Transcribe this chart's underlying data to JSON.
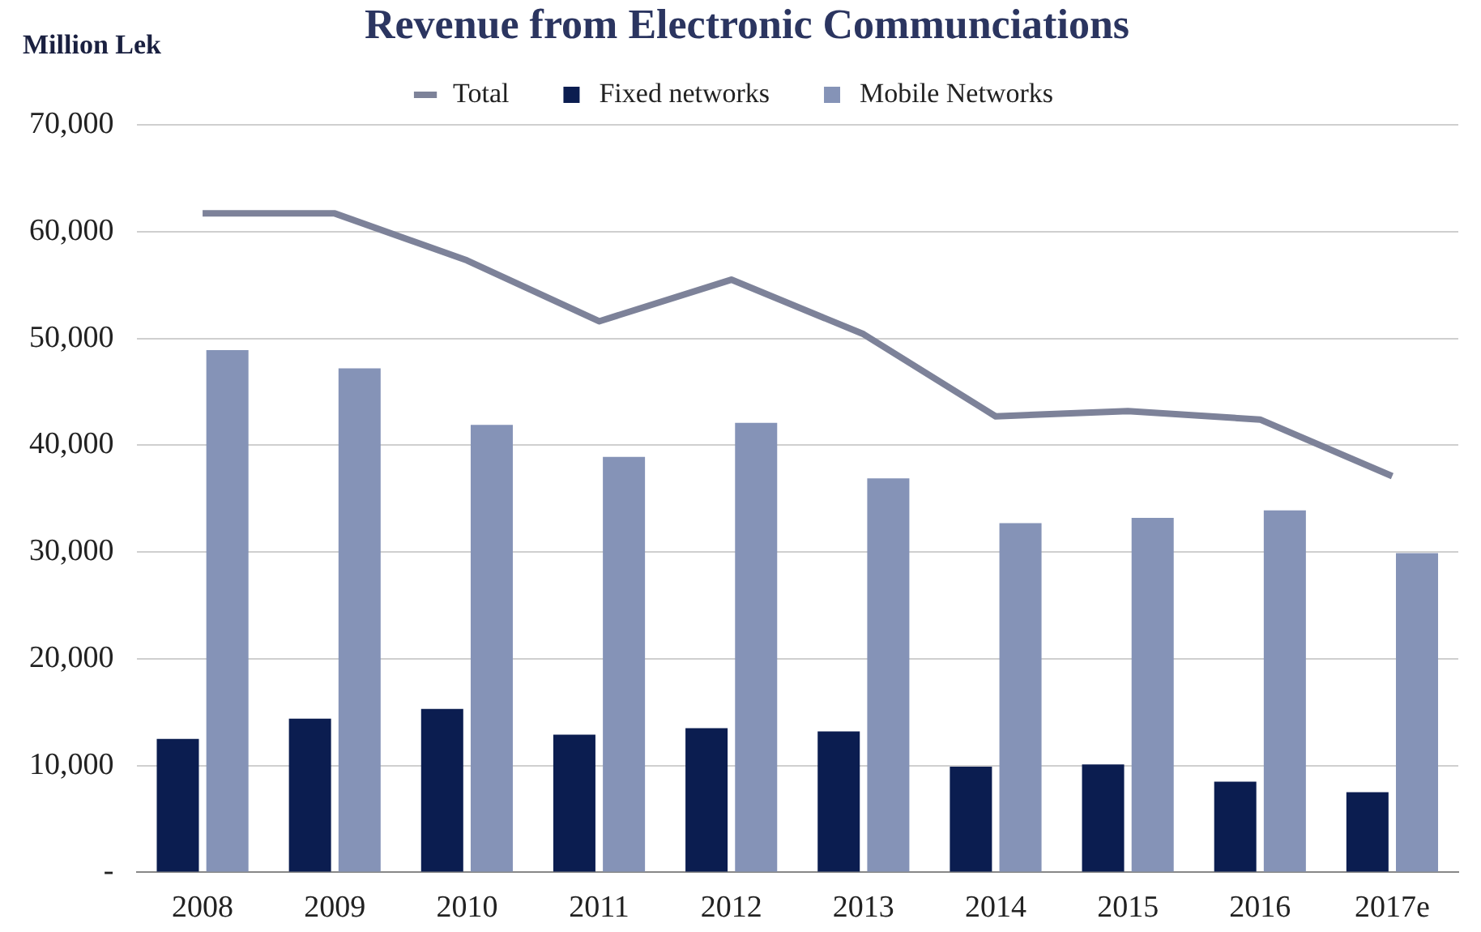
{
  "chart_data": {
    "type": "bar",
    "title": "Revenue from Electronic Communciations",
    "ylabel": "Million Lek",
    "categories": [
      "2008",
      "2009",
      "2010",
      "2011",
      "2012",
      "2013",
      "2014",
      "2015",
      "2016",
      "2017e"
    ],
    "series": [
      {
        "name": "Fixed networks",
        "color": "#0b1d50",
        "values": [
          12500,
          14400,
          15300,
          12900,
          13500,
          13200,
          9900,
          10100,
          8500,
          7500
        ]
      },
      {
        "name": "Mobile Networks",
        "color": "#8593b7",
        "values": [
          48900,
          47200,
          41900,
          38900,
          42100,
          36900,
          32700,
          33200,
          33900,
          29900
        ]
      },
      {
        "name": "Total",
        "type": "line",
        "color": "#7d8299",
        "values": [
          61700,
          61700,
          57300,
          51600,
          55500,
          50400,
          42700,
          43200,
          42400,
          37100
        ]
      }
    ],
    "ylim": [
      0,
      70000
    ],
    "yticks": [
      {
        "value": 0,
        "label": "-"
      },
      {
        "value": 10000,
        "label": "10,000"
      },
      {
        "value": 20000,
        "label": "20,000"
      },
      {
        "value": 30000,
        "label": "30,000"
      },
      {
        "value": 40000,
        "label": "40,000"
      },
      {
        "value": 50000,
        "label": "50,000"
      },
      {
        "value": 60000,
        "label": "60,000"
      },
      {
        "value": 70000,
        "label": "70,000"
      }
    ],
    "grid": "y",
    "legend": "top",
    "marker": "none",
    "line_style": "solid"
  }
}
